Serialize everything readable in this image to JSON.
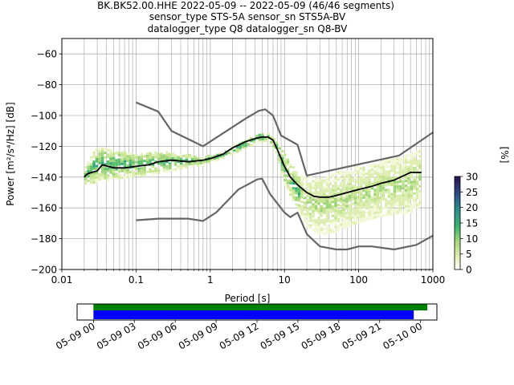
{
  "title": {
    "line1": "BK.BK52.00.HHE   2022-05-09 -- 2022-05-09  (46/46 segments)",
    "line2": "sensor_type STS-5A sensor_sn STS5A-BV",
    "line3": "datalogger_type Q8 datalogger_sn Q8-BV"
  },
  "chart_data": [
    {
      "type": "heatmap",
      "title": "BK.BK52.00.HHE   2022-05-09 -- 2022-05-09  (46/46 segments)",
      "xlabel": "Period [s]",
      "ylabel": "Power [m²/s⁴/Hz] [dB]",
      "xscale": "log",
      "xlim": [
        0.01,
        1000
      ],
      "ylim": [
        -200,
        -50
      ],
      "grid": true,
      "x_ticks": [
        0.01,
        0.1,
        1,
        10,
        100,
        1000
      ],
      "x_tick_labels": [
        "0.01",
        "0.1",
        "1",
        "10",
        "100",
        "1000"
      ],
      "y_ticks": [
        -200,
        -180,
        -160,
        -140,
        -120,
        -100,
        -80,
        -60
      ],
      "y_tick_labels": [
        "−200",
        "−180",
        "−160",
        "−140",
        "−120",
        "−100",
        "−80",
        "−60"
      ],
      "colorbar": {
        "label": "[%]",
        "range": [
          0,
          30
        ],
        "ticks": [
          0,
          5,
          10,
          15,
          20,
          25,
          30
        ],
        "tick_labels": [
          "0",
          "5",
          "10",
          "15",
          "20",
          "25",
          "30"
        ],
        "colormap": [
          "#ffffff",
          "#e8f0b8",
          "#a8d878",
          "#3cb870",
          "#2a8c8c",
          "#2c4a86",
          "#2a0f50"
        ]
      },
      "ppsd_band": {
        "periods": [
          0.02,
          0.03,
          0.05,
          0.1,
          0.2,
          0.5,
          0.8,
          1.5,
          3,
          4.5,
          6,
          8,
          10,
          15,
          20,
          30,
          50,
          100,
          200,
          500,
          700
        ],
        "lower_db": [
          -145,
          -144,
          -142,
          -140,
          -138,
          -134,
          -133,
          -128,
          -122,
          -118,
          -117,
          -125,
          -145,
          -160,
          -172,
          -178,
          -176,
          -170,
          -166,
          -164,
          -158
        ],
        "upper_db": [
          -136,
          -121,
          -123,
          -125,
          -124,
          -126,
          -128,
          -124,
          -116,
          -112,
          -112,
          -118,
          -125,
          -138,
          -140,
          -142,
          -138,
          -134,
          -130,
          -126,
          -122
        ]
      },
      "series": [
        {
          "name": "",
          "color": "#000000",
          "x": [
            0.02,
            0.022,
            0.025,
            0.03,
            0.035,
            0.05,
            0.07,
            0.1,
            0.15,
            0.2,
            0.3,
            0.5,
            0.8,
            1.0,
            1.5,
            2.0,
            3.0,
            4.0,
            5.0,
            6.0,
            7.0,
            8.0,
            10,
            12,
            15,
            20,
            25,
            30,
            40,
            50,
            70,
            100,
            150,
            200,
            300,
            500,
            700
          ],
          "y": [
            -140,
            -138,
            -137,
            -136,
            -132,
            -134,
            -134,
            -133,
            -132,
            -130,
            -129,
            -130,
            -129,
            -128,
            -125,
            -121,
            -117,
            -115,
            -114,
            -114,
            -116,
            -122,
            -133,
            -140,
            -145,
            -150,
            -152.5,
            -153,
            -153,
            -152,
            -150,
            -148,
            -146,
            -144,
            -142,
            -137,
            -137
          ]
        },
        {
          "name": "",
          "color": "#666666",
          "x": [
            0.1,
            0.2,
            0.3,
            0.8,
            3.0,
            4.5,
            5.5,
            7.0,
            9.0,
            15,
            20,
            350,
            1000
          ],
          "y": [
            -91.5,
            -97.5,
            -110,
            -120,
            -102,
            -97,
            -96,
            -100,
            -113,
            -119,
            -139,
            -126,
            -111
          ]
        },
        {
          "name": "",
          "color": "#666666",
          "x": [
            0.1,
            0.2,
            0.5,
            0.8,
            1.2,
            2.4,
            4.3,
            5.0,
            6.4,
            10,
            12,
            15,
            20,
            30,
            50,
            70,
            100,
            150,
            300,
            600,
            1000
          ],
          "y": [
            -168,
            -167,
            -167,
            -168.5,
            -163,
            -148,
            -141.5,
            -141,
            -151,
            -163,
            -166,
            -163,
            -177,
            -185,
            -187,
            -187,
            -185,
            -185,
            -187,
            -184,
            -178
          ]
        }
      ]
    },
    {
      "type": "timeline",
      "x_tick_labels": [
        "05-09 00",
        "05-09 03",
        "05-09 06",
        "05-09 09",
        "05-09 12",
        "05-09 15",
        "05-09 18",
        "05-09 21",
        "05-10 00"
      ],
      "x_ticks_hours": [
        0,
        3,
        6,
        9,
        12,
        15,
        18,
        21,
        24
      ],
      "xlim_hours": [
        -1.2,
        25.2
      ],
      "bars": [
        {
          "color": "#008000",
          "start_hour": 0,
          "end_hour": 24.5
        },
        {
          "color": "#0000ff",
          "start_hour": 0,
          "end_hour": 23.5
        }
      ]
    }
  ]
}
